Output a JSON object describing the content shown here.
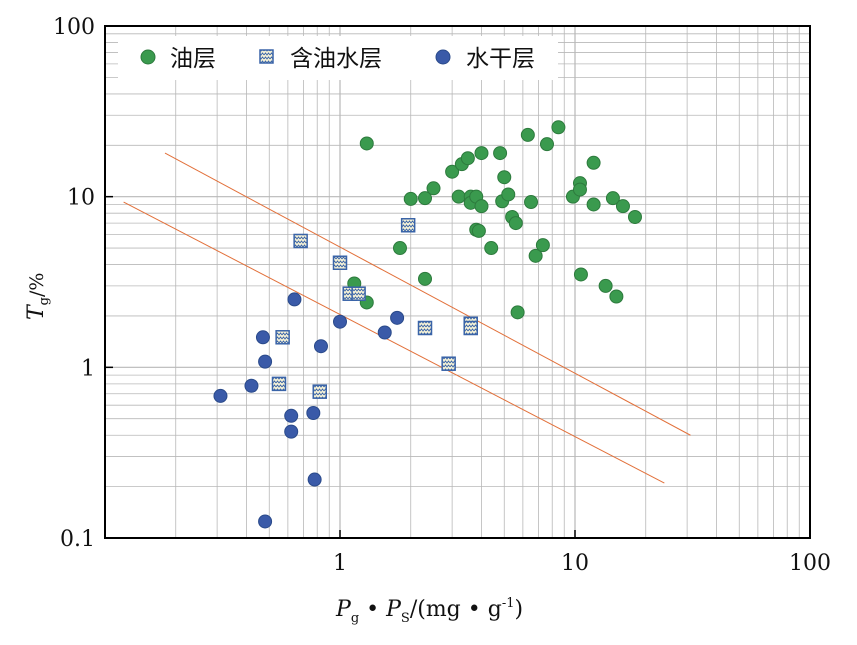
{
  "chart_data": {
    "type": "scatter",
    "x_scale": "log",
    "y_scale": "log",
    "xlim": [
      0.1,
      100
    ],
    "ylim": [
      0.1,
      100
    ],
    "x_ticks": [
      {
        "value": 1,
        "label": "1"
      },
      {
        "value": 10,
        "label": "10"
      },
      {
        "value": 100,
        "label": "100"
      }
    ],
    "y_ticks": [
      {
        "value": 0.1,
        "label": "0.1"
      },
      {
        "value": 1,
        "label": "1"
      },
      {
        "value": 10,
        "label": "10"
      },
      {
        "value": 100,
        "label": "100"
      }
    ],
    "xlabel": {
      "p1": "P",
      "s1": "g",
      "dot1": " • ",
      "p2": "P",
      "s2": "S",
      "unit_a": "/(mg • g",
      "sup": "-1",
      "unit_b": ")"
    },
    "ylabel": {
      "main": "T",
      "sub": "g",
      "unit": "/%"
    },
    "grid": true,
    "legend_position": "top-left",
    "colors": {
      "oil": "#3a9a4e",
      "oilwater": "#3a64a8",
      "dry": "#3a5aa8",
      "line": "#e2703a",
      "grid": "#b8b8b8"
    },
    "series": [
      {
        "name": "油层",
        "marker": "circle",
        "points": [
          [
            1.3,
            20.5
          ],
          [
            1.3,
            2.4
          ],
          [
            1.15,
            3.1
          ],
          [
            1.8,
            5.0
          ],
          [
            2.0,
            9.7
          ],
          [
            2.3,
            9.8
          ],
          [
            2.3,
            3.3
          ],
          [
            2.5,
            11.2
          ],
          [
            3.0,
            14.0
          ],
          [
            3.2,
            10.0
          ],
          [
            3.3,
            15.5
          ],
          [
            3.5,
            16.8
          ],
          [
            3.6,
            10.0
          ],
          [
            3.6,
            9.2
          ],
          [
            3.8,
            10.0
          ],
          [
            3.8,
            6.4
          ],
          [
            3.9,
            6.3
          ],
          [
            4.0,
            18.0
          ],
          [
            4.0,
            8.8
          ],
          [
            4.4,
            5.0
          ],
          [
            4.8,
            18.0
          ],
          [
            4.9,
            9.4
          ],
          [
            5.0,
            13.0
          ],
          [
            5.2,
            10.3
          ],
          [
            5.4,
            7.6
          ],
          [
            5.6,
            7.0
          ],
          [
            5.7,
            2.1
          ],
          [
            6.3,
            23.0
          ],
          [
            6.5,
            9.3
          ],
          [
            6.8,
            4.5
          ],
          [
            7.3,
            5.2
          ],
          [
            7.6,
            20.3
          ],
          [
            8.5,
            25.5
          ],
          [
            9.8,
            10.0
          ],
          [
            10.5,
            12.0
          ],
          [
            10.5,
            11.0
          ],
          [
            10.6,
            3.5
          ],
          [
            12.0,
            15.8
          ],
          [
            12.0,
            9.0
          ],
          [
            13.5,
            3.0
          ],
          [
            14.5,
            9.8
          ],
          [
            15.0,
            2.6
          ],
          [
            16.0,
            8.8
          ],
          [
            18.0,
            7.6
          ]
        ]
      },
      {
        "name": "含油水层",
        "marker": "square",
        "points": [
          [
            0.55,
            0.8
          ],
          [
            0.57,
            1.5
          ],
          [
            0.68,
            5.5
          ],
          [
            0.82,
            0.72
          ],
          [
            1.0,
            4.1
          ],
          [
            1.1,
            2.7
          ],
          [
            1.2,
            2.7
          ],
          [
            1.95,
            6.8
          ],
          [
            2.3,
            1.7
          ],
          [
            2.9,
            1.05
          ],
          [
            3.6,
            1.8
          ],
          [
            3.6,
            1.7
          ]
        ]
      },
      {
        "name": "水干层",
        "marker": "circle",
        "points": [
          [
            0.31,
            0.68
          ],
          [
            0.42,
            0.78
          ],
          [
            0.47,
            1.5
          ],
          [
            0.48,
            1.08
          ],
          [
            0.48,
            0.125
          ],
          [
            0.62,
            0.52
          ],
          [
            0.62,
            0.42
          ],
          [
            0.64,
            2.5
          ],
          [
            0.77,
            0.54
          ],
          [
            0.78,
            0.22
          ],
          [
            0.83,
            1.33
          ],
          [
            1.0,
            1.85
          ],
          [
            1.55,
            1.6
          ],
          [
            1.75,
            1.95
          ]
        ]
      }
    ],
    "lines": [
      {
        "from": [
          0.18,
          18.0
        ],
        "to": [
          31.0,
          0.4
        ]
      },
      {
        "from": [
          0.12,
          9.3
        ],
        "to": [
          24.0,
          0.21
        ]
      }
    ]
  }
}
